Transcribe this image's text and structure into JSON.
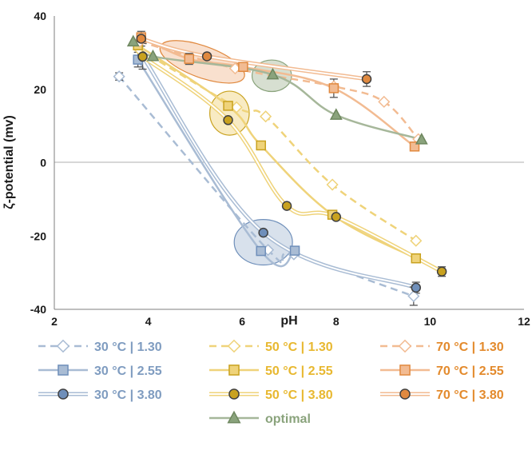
{
  "chart_data": {
    "type": "line",
    "xlabel": "pH",
    "ylabel": "ζ-potential (mv)",
    "xlim": [
      2,
      12
    ],
    "ylim": [
      -40,
      40
    ],
    "x_ticks": [
      "2",
      "4",
      "6",
      "8",
      "10",
      "12"
    ],
    "y_ticks": [
      "40",
      "20",
      "0",
      "-20",
      "-40"
    ],
    "grid": false,
    "zero_line": true,
    "legend_position": "bottom",
    "colors": {
      "c30": "#a9bcd4",
      "c30_marker": "#6f8fba",
      "c30_text": "#7f9cc0",
      "c50": "#efd37a",
      "c50_marker": "#c9a21f",
      "c50_text": "#e8b830",
      "c70": "#f2bb92",
      "c70_marker": "#e0893f",
      "c70_text": "#e38a2c",
      "optimal": "#a6b79a",
      "optimal_marker": "#8aa37c",
      "error_bar": "#555555"
    },
    "series": [
      {
        "name": "30 °C | 1.30",
        "marker": "diamond",
        "line": "dashed",
        "group": "c30",
        "x": [
          3.38,
          6.55,
          7.1,
          9.65
        ],
        "y": [
          23.5,
          -23.8,
          -25.0,
          -36.4
        ],
        "err": [
          1.0,
          0,
          0,
          2.5
        ]
      },
      {
        "name": "30 °C | 2.55",
        "marker": "square",
        "line": "solid",
        "group": "c30",
        "x": [
          3.78,
          6.4,
          7.12
        ],
        "y": [
          28.1,
          -24.1,
          -24.0
        ],
        "err": [
          2.0,
          0,
          0
        ]
      },
      {
        "name": "30 °C | 3.80",
        "marker": "circle",
        "line": "double",
        "group": "c30",
        "x": [
          3.88,
          6.45,
          9.7
        ],
        "y": [
          29.0,
          -19.1,
          -34.1
        ],
        "err": [
          3.5,
          0,
          1.5
        ]
      },
      {
        "name": "50 °C | 1.30",
        "marker": "diamond",
        "line": "dashed",
        "group": "c50",
        "x": [
          3.8,
          5.88,
          6.5,
          7.92,
          9.7
        ],
        "y": [
          31.0,
          15.1,
          12.6,
          -6.0,
          -21.3
        ],
        "err": [
          0,
          0,
          0,
          0,
          0
        ]
      },
      {
        "name": "50 °C | 2.55",
        "marker": "square",
        "line": "solid",
        "group": "c50",
        "x": [
          3.78,
          5.7,
          6.4,
          7.92,
          9.7
        ],
        "y": [
          32.0,
          15.5,
          4.7,
          -14.2,
          -26.1
        ],
        "err": [
          0,
          0,
          0,
          0,
          0
        ]
      },
      {
        "name": "50 °C | 3.80",
        "marker": "circle",
        "line": "double",
        "group": "c50",
        "x": [
          3.88,
          5.7,
          6.95,
          8.0,
          10.25
        ],
        "y": [
          28.9,
          11.6,
          -11.8,
          -14.8,
          -29.7
        ],
        "err": [
          0,
          0,
          0,
          0,
          1.3
        ]
      },
      {
        "name": "70 °C | 1.30",
        "marker": "diamond",
        "line": "dashed",
        "group": "c70",
        "x": [
          3.82,
          5.85,
          7.95,
          9.02,
          9.75
        ],
        "y": [
          33.0,
          25.7,
          20.8,
          16.6,
          6.4
        ],
        "err": [
          0,
          0,
          0,
          0,
          0
        ]
      },
      {
        "name": "70 °C | 2.55",
        "marker": "square",
        "line": "solid",
        "group": "c70",
        "x": [
          3.85,
          4.87,
          6.02,
          7.95,
          9.67
        ],
        "y": [
          34.2,
          28.3,
          26.1,
          20.3,
          4.4
        ],
        "err": [
          1.2,
          1.5,
          0,
          2.5,
          0
        ]
      },
      {
        "name": "70 °C | 3.80",
        "marker": "circle",
        "line": "double",
        "group": "c70",
        "x": [
          3.85,
          5.25,
          8.65
        ],
        "y": [
          33.8,
          29.0,
          22.8
        ],
        "err": [
          2.0,
          0,
          2.0
        ]
      },
      {
        "name": "optimal",
        "marker": "triangle",
        "line": "solid",
        "group": "optimal",
        "x": [
          3.68,
          4.1,
          6.65,
          8.0,
          9.82
        ],
        "y": [
          33.0,
          29.0,
          24.0,
          13.0,
          6.3
        ],
        "err": [
          0,
          0,
          0,
          0,
          0
        ]
      }
    ],
    "highlights": [
      {
        "group": "c70",
        "cx": 5.15,
        "cy": 27.5,
        "rx": 0.95,
        "ry": 4.3,
        "rotate_deg": 20
      },
      {
        "group": "c50",
        "cx": 5.73,
        "cy": 13.5,
        "rx": 0.42,
        "ry": 6.0,
        "rotate_deg": 0
      },
      {
        "group": "optimal",
        "cx": 6.63,
        "cy": 23.7,
        "rx": 0.42,
        "ry": 4.3,
        "rotate_deg": 0
      },
      {
        "group": "c30",
        "cx": 6.45,
        "cy": -21.7,
        "rx": 0.62,
        "ry": 6.2,
        "rotate_deg": 0
      }
    ]
  }
}
